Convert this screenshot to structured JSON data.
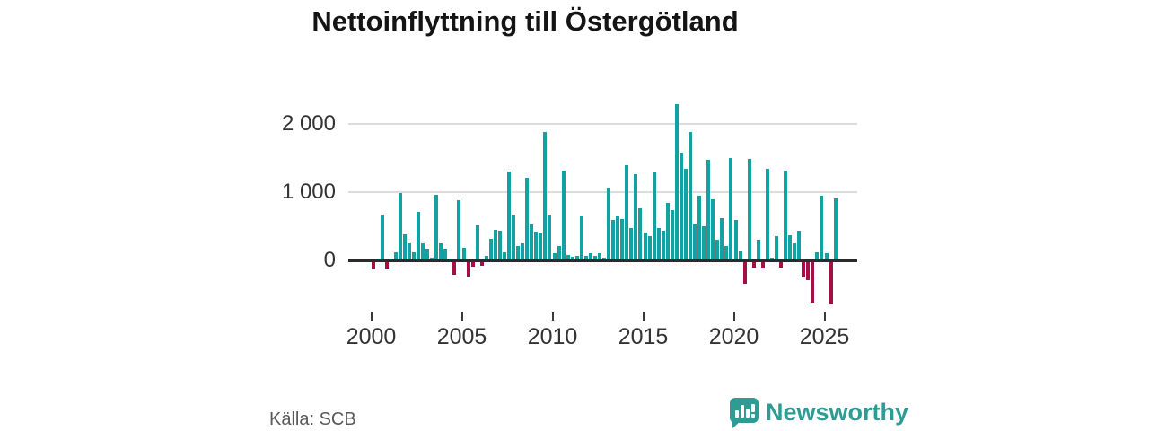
{
  "title": "Nettoinflyttning till Östergötland",
  "source_label": "Källa: SCB",
  "brand": {
    "name": "Newsworthy",
    "color": "#2E9C93"
  },
  "chart_data": {
    "type": "bar",
    "title": "Nettoinflyttning till Östergötland",
    "frequency": "quarterly",
    "x_start": "2000-Q1",
    "x_end": "2025-Q3",
    "x_tick_years": [
      2000,
      2005,
      2010,
      2015,
      2020,
      2025
    ],
    "x_tick_labels": [
      "2000",
      "2005",
      "2010",
      "2015",
      "2020",
      "2025"
    ],
    "y_ticks": [
      0,
      1000,
      2000
    ],
    "y_tick_labels": [
      "0",
      "1 000",
      "2 000"
    ],
    "ylim": [
      -700,
      2400
    ],
    "grid": "horizontal",
    "legend": "none",
    "colors": {
      "positive": "#14A1A1",
      "negative": "#A50F45"
    },
    "values": [
      -100,
      30,
      675,
      -110,
      25,
      125,
      985,
      380,
      250,
      115,
      715,
      255,
      170,
      40,
      965,
      255,
      165,
      30,
      -185,
      890,
      180,
      -205,
      -65,
      520,
      -55,
      60,
      320,
      450,
      430,
      125,
      1300,
      670,
      210,
      245,
      1220,
      525,
      420,
      400,
      1880,
      670,
      100,
      210,
      1315,
      80,
      55,
      70,
      655,
      60,
      110,
      70,
      100,
      45,
      1075,
      590,
      655,
      605,
      1400,
      470,
      1270,
      770,
      410,
      350,
      1290,
      475,
      440,
      840,
      745,
      2290,
      1580,
      1350,
      1890,
      525,
      945,
      495,
      1480,
      900,
      300,
      615,
      210,
      1505,
      590,
      135,
      -315,
      1490,
      -75,
      305,
      -95,
      1340,
      35,
      355,
      -75,
      1315,
      375,
      255,
      440,
      -220,
      -270,
      -600,
      125,
      955,
      110,
      -615,
      910
    ]
  }
}
